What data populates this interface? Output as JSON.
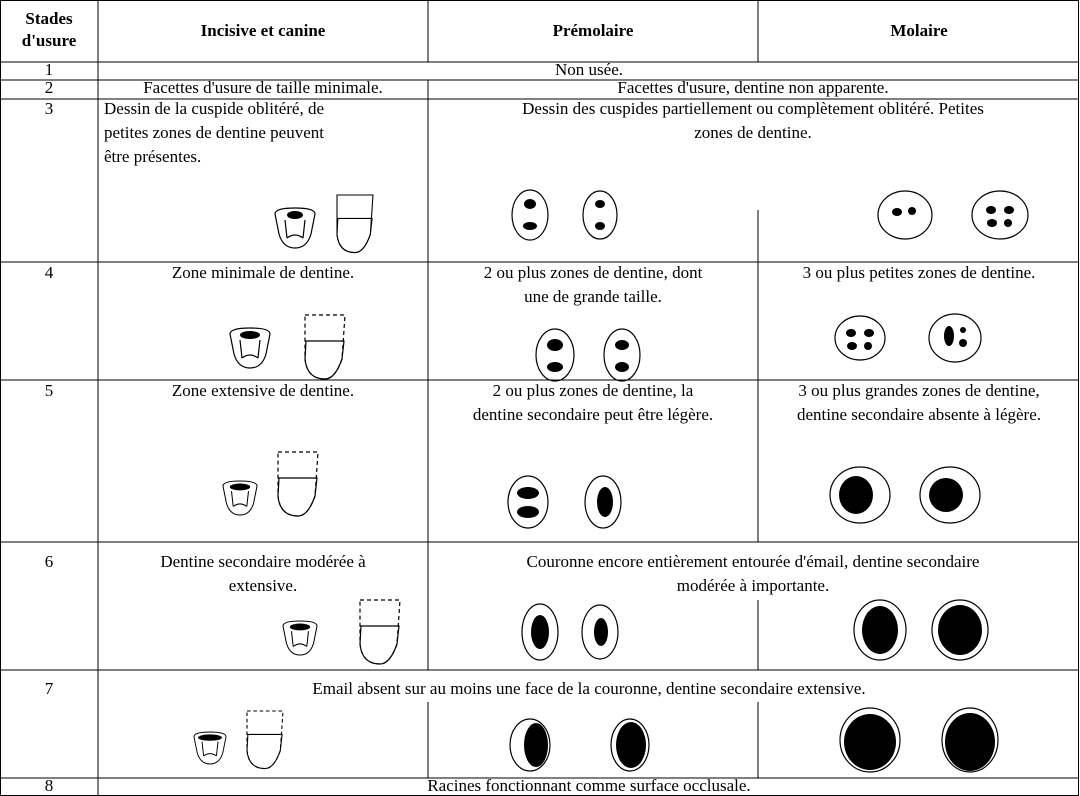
{
  "table": {
    "header": [
      [
        "Stades",
        "d'usure"
      ],
      "Incisive et canine",
      "Prémolaire",
      "Molaire"
    ],
    "rows": [
      {
        "stage": "1",
        "text": "Non usée."
      },
      {
        "stage": "2",
        "incisive": "Facettes d'usure de taille minimale.",
        "premolaire_molaire": "Facettes d'usure, dentine non apparente."
      },
      {
        "stage": "3",
        "incisive": [
          "Dessin de la cuspide oblitéré, de",
          "petites zones de dentine peuvent",
          "être présentes."
        ],
        "premolaire_molaire": [
          "Dessin des cuspides partiellement ou complètement oblitéré. Petites",
          "zones de dentine."
        ]
      },
      {
        "stage": "4",
        "incisive": "Zone minimale de dentine.",
        "premolaire": [
          "2 ou plus zones de dentine, dont",
          "une de grande taille."
        ],
        "molaire": "3 ou plus petites zones de dentine."
      },
      {
        "stage": "5",
        "incisive": "Zone extensive de dentine.",
        "premolaire": [
          "2 ou plus zones de dentine, la",
          "dentine secondaire peut être légère."
        ],
        "molaire": [
          "3 ou plus grandes zones de dentine,",
          "dentine secondaire absente à légère."
        ]
      },
      {
        "stage": "6",
        "incisive": [
          "Dentine secondaire modérée à",
          "extensive."
        ],
        "premolaire_molaire": [
          "Couronne encore entièrement entourée d'émail, dentine secondaire",
          "modérée à importante."
        ]
      },
      {
        "stage": "7",
        "text": "Email absent sur au moins une face de la couronne, dentine secondaire extensive."
      },
      {
        "stage": "8",
        "text": "Racines fonctionnant comme surface occlusale."
      }
    ]
  }
}
